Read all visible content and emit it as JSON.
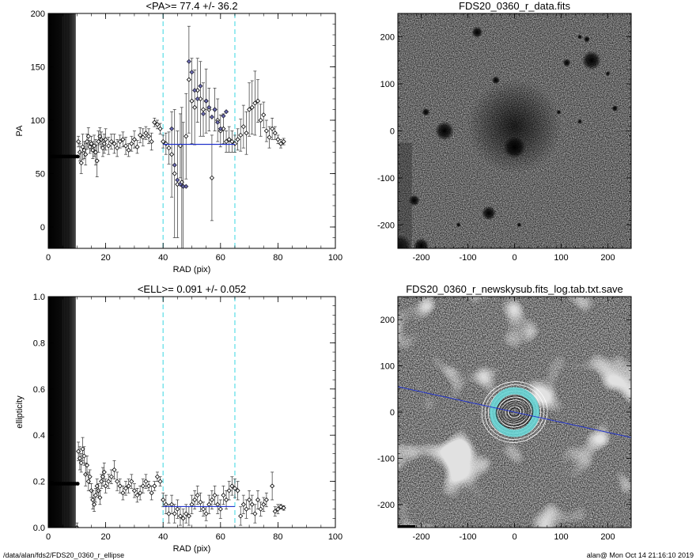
{
  "footer": {
    "left": "/data/alan/fds2/FDS20_0360_r_ellipse",
    "right": "alan@  Mon Oct 14 21:16:10 2019"
  },
  "colors": {
    "fit_line": "#2233cc",
    "boundary_line": "#66e0e8",
    "marker_fill": "#6a6ab4",
    "annulus": "#66d8d8"
  },
  "chart_data": [
    {
      "type": "scatter",
      "title": "<PA>=  77.4 +/-  36.2",
      "xlabel": "RAD (pix)",
      "ylabel": "PA",
      "xlim": [
        0,
        100
      ],
      "ylim": [
        -20,
        200
      ],
      "xticks": [
        0,
        20,
        40,
        60,
        80,
        100
      ],
      "yticks": [
        0,
        50,
        100,
        150,
        200
      ],
      "mean": 77.4,
      "err": 36.2,
      "fit_range": [
        40,
        65
      ],
      "boundaries": [
        40,
        65
      ],
      "points": [
        [
          10.5,
          80,
          5
        ],
        [
          11,
          70,
          8
        ],
        [
          11.5,
          60,
          10
        ],
        [
          12,
          75,
          12
        ],
        [
          12.5,
          72,
          8
        ],
        [
          13,
          68,
          10
        ],
        [
          13.5,
          80,
          7
        ],
        [
          14,
          85,
          8
        ],
        [
          14.5,
          75,
          6
        ],
        [
          15,
          78,
          7
        ],
        [
          15.5,
          72,
          8
        ],
        [
          16,
          76,
          10
        ],
        [
          16.5,
          70,
          12
        ],
        [
          17,
          62,
          15
        ],
        [
          17.5,
          80,
          10
        ],
        [
          18,
          85,
          8
        ],
        [
          18.5,
          82,
          7
        ],
        [
          19,
          74,
          8
        ],
        [
          19.5,
          78,
          9
        ],
        [
          20,
          82,
          10
        ],
        [
          21,
          76,
          8
        ],
        [
          22,
          80,
          7
        ],
        [
          23,
          78,
          9
        ],
        [
          24,
          74,
          8
        ],
        [
          25,
          80,
          6
        ],
        [
          26,
          82,
          7
        ],
        [
          27,
          76,
          8
        ],
        [
          28,
          72,
          6
        ],
        [
          29,
          78,
          7
        ],
        [
          30,
          82,
          8
        ],
        [
          31,
          75,
          6
        ],
        [
          32,
          86,
          7
        ],
        [
          33,
          84,
          8
        ],
        [
          34,
          88,
          6
        ],
        [
          35,
          85,
          7
        ],
        [
          36,
          80,
          8
        ],
        [
          37,
          98,
          4
        ],
        [
          38,
          96,
          4
        ],
        [
          39,
          92,
          5
        ],
        [
          40,
          80,
          6
        ],
        [
          41,
          78,
          10
        ],
        [
          42,
          74,
          15
        ],
        [
          43,
          68,
          40
        ],
        [
          44,
          50,
          60
        ],
        [
          45,
          40,
          50
        ],
        [
          46,
          76,
          30
        ],
        [
          46.5,
          42,
          70
        ],
        [
          47,
          38,
          60
        ],
        [
          48,
          85,
          40
        ],
        [
          49,
          138,
          50
        ],
        [
          50,
          118,
          40
        ],
        [
          51,
          112,
          35
        ],
        [
          52,
          128,
          30
        ],
        [
          53,
          120,
          35
        ],
        [
          54,
          110,
          25
        ],
        [
          55,
          118,
          30
        ],
        [
          56,
          110,
          20
        ],
        [
          57,
          46,
          40
        ],
        [
          58,
          110,
          20
        ],
        [
          59,
          100,
          20
        ],
        [
          60,
          90,
          15
        ],
        [
          61,
          92,
          14
        ],
        [
          62,
          80,
          10
        ],
        [
          63,
          82,
          12
        ],
        [
          64,
          80,
          10
        ],
        [
          65,
          78,
          8
        ],
        [
          66,
          82,
          10
        ],
        [
          67,
          86,
          15
        ],
        [
          68,
          94,
          20
        ],
        [
          69,
          88,
          20
        ],
        [
          70,
          110,
          25
        ],
        [
          71,
          112,
          25
        ],
        [
          72,
          116,
          30
        ],
        [
          73,
          118,
          20
        ],
        [
          74,
          100,
          15
        ],
        [
          75,
          105,
          12
        ],
        [
          76,
          90,
          10
        ],
        [
          77,
          84,
          10
        ],
        [
          78,
          92,
          10
        ],
        [
          79,
          88,
          6
        ],
        [
          80,
          82,
          4
        ],
        [
          81,
          78,
          4
        ],
        [
          82,
          80,
          3
        ]
      ],
      "fit_points": [
        [
          43,
          92
        ],
        [
          44,
          58
        ],
        [
          45,
          44
        ],
        [
          46,
          40
        ],
        [
          47,
          38
        ],
        [
          48,
          38
        ],
        [
          49,
          155
        ],
        [
          50,
          145
        ],
        [
          51,
          128
        ],
        [
          52,
          120
        ],
        [
          53,
          132
        ],
        [
          54,
          106
        ],
        [
          55,
          118
        ],
        [
          56,
          112
        ],
        [
          57,
          103
        ],
        [
          58,
          110
        ],
        [
          59,
          98
        ],
        [
          60,
          92
        ],
        [
          61,
          104
        ],
        [
          62,
          108
        ]
      ]
    },
    {
      "type": "image",
      "title": "FDS20_0360_r_data.fits",
      "xlim": [
        -250,
        250
      ],
      "ylim": [
        -250,
        250
      ],
      "xticks": [
        -200,
        -100,
        0,
        100,
        200
      ],
      "yticks": [
        -200,
        -100,
        0,
        100,
        200
      ]
    },
    {
      "type": "scatter",
      "title": "<ELL>= 0.091 +/-  0.052",
      "xlabel": "RAD (pix)",
      "ylabel": "ellipticity",
      "xlim": [
        0,
        100
      ],
      "ylim": [
        0,
        1
      ],
      "xticks": [
        0,
        20,
        40,
        60,
        80,
        100
      ],
      "yticks": [
        0.0,
        0.2,
        0.4,
        0.6,
        0.8,
        1.0
      ],
      "ytick_labels": [
        "0.0",
        "0.2",
        "0.4",
        "0.6",
        "0.8",
        "1.0"
      ],
      "mean": 0.091,
      "err": 0.052,
      "fit_range": [
        40,
        65
      ],
      "boundaries": [
        40,
        65
      ],
      "points": [
        [
          10,
          0.0,
          0.02
        ],
        [
          10.5,
          0.33,
          0.04
        ],
        [
          11,
          0.3,
          0.05
        ],
        [
          11.5,
          0.28,
          0.04
        ],
        [
          12,
          0.34,
          0.05
        ],
        [
          12.5,
          0.31,
          0.04
        ],
        [
          13,
          0.23,
          0.05
        ],
        [
          13.5,
          0.27,
          0.04
        ],
        [
          14,
          0.2,
          0.04
        ],
        [
          14.5,
          0.22,
          0.03
        ],
        [
          15,
          0.16,
          0.03
        ],
        [
          15.5,
          0.12,
          0.04
        ],
        [
          16,
          0.1,
          0.03
        ],
        [
          16.5,
          0.14,
          0.03
        ],
        [
          17,
          0.18,
          0.03
        ],
        [
          17.5,
          0.16,
          0.03
        ],
        [
          18,
          0.13,
          0.03
        ],
        [
          18.5,
          0.2,
          0.03
        ],
        [
          19,
          0.22,
          0.04
        ],
        [
          19.5,
          0.24,
          0.04
        ],
        [
          20,
          0.18,
          0.03
        ],
        [
          21,
          0.2,
          0.03
        ],
        [
          22,
          0.22,
          0.03
        ],
        [
          23,
          0.25,
          0.04
        ],
        [
          24,
          0.2,
          0.04
        ],
        [
          25,
          0.18,
          0.03
        ],
        [
          26,
          0.15,
          0.03
        ],
        [
          27,
          0.17,
          0.03
        ],
        [
          28,
          0.18,
          0.03
        ],
        [
          29,
          0.2,
          0.03
        ],
        [
          30,
          0.16,
          0.03
        ],
        [
          31,
          0.14,
          0.03
        ],
        [
          32,
          0.15,
          0.03
        ],
        [
          33,
          0.18,
          0.03
        ],
        [
          34,
          0.2,
          0.03
        ],
        [
          35,
          0.18,
          0.02
        ],
        [
          36,
          0.15,
          0.03
        ],
        [
          37,
          0.18,
          0.02
        ],
        [
          38,
          0.22,
          0.02
        ],
        [
          39,
          0.2,
          0.02
        ],
        [
          40,
          0.12,
          0.03
        ],
        [
          41,
          0.1,
          0.04
        ],
        [
          42,
          0.06,
          0.04
        ],
        [
          43,
          0.1,
          0.04
        ],
        [
          44,
          0.06,
          0.04
        ],
        [
          45,
          0.08,
          0.04
        ],
        [
          46,
          0.05,
          0.04
        ],
        [
          47,
          0.04,
          0.04
        ],
        [
          48,
          0.06,
          0.04
        ],
        [
          49,
          0.05,
          0.04
        ],
        [
          50,
          0.1,
          0.04
        ],
        [
          51,
          0.12,
          0.04
        ],
        [
          52,
          0.14,
          0.04
        ],
        [
          53,
          0.11,
          0.04
        ],
        [
          54,
          0.08,
          0.03
        ],
        [
          55,
          0.06,
          0.03
        ],
        [
          56,
          0.1,
          0.04
        ],
        [
          57,
          0.12,
          0.04
        ],
        [
          58,
          0.14,
          0.04
        ],
        [
          59,
          0.1,
          0.04
        ],
        [
          60,
          0.08,
          0.04
        ],
        [
          61,
          0.14,
          0.04
        ],
        [
          62,
          0.12,
          0.04
        ],
        [
          63,
          0.16,
          0.04
        ],
        [
          64,
          0.18,
          0.04
        ],
        [
          65,
          0.17,
          0.04
        ],
        [
          66,
          0.16,
          0.04
        ],
        [
          67,
          0.05,
          0.04
        ],
        [
          68,
          0.1,
          0.04
        ],
        [
          69,
          0.08,
          0.04
        ],
        [
          70,
          0.12,
          0.04
        ],
        [
          71,
          0.1,
          0.04
        ],
        [
          72,
          0.06,
          0.04
        ],
        [
          73,
          0.12,
          0.04
        ],
        [
          74,
          0.08,
          0.03
        ],
        [
          75,
          0.1,
          0.03
        ],
        [
          76,
          0.12,
          0.03
        ],
        [
          78,
          0.18,
          0.06
        ],
        [
          79,
          0.07,
          0.02
        ],
        [
          80,
          0.08,
          0.02
        ],
        [
          81,
          0.09,
          0.01
        ],
        [
          82,
          0.085,
          0.01
        ]
      ]
    },
    {
      "type": "image",
      "title": "FDS20_0360_r_newskysub.fits_log.tab.txt.save",
      "xlim": [
        -250,
        250
      ],
      "ylim": [
        -250,
        250
      ],
      "xticks": [
        -200,
        -100,
        0,
        100,
        200
      ],
      "yticks": [
        -200,
        -100,
        0,
        100,
        200
      ]
    }
  ]
}
